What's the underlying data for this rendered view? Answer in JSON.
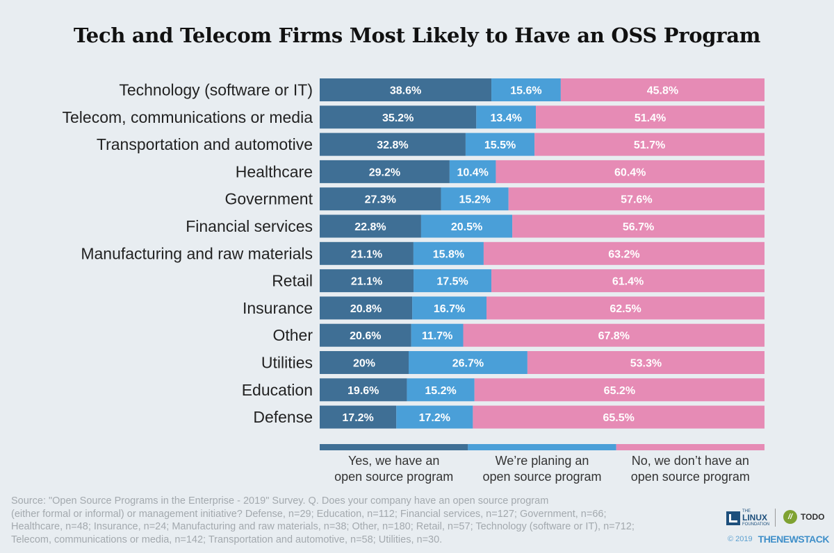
{
  "title": "Tech and Telecom Firms Most Likely to Have an OSS Program",
  "chart_data": {
    "type": "bar",
    "orientation": "horizontal",
    "stacked": "100%",
    "title": "Tech and Telecom Firms Most Likely to Have an OSS Program",
    "categories": [
      "Technology (software or IT)",
      "Telecom, communications or media",
      "Transportation and automotive",
      "Healthcare",
      "Government",
      "Financial services",
      "Manufacturing and raw materials",
      "Retail",
      "Insurance",
      "Other",
      "Utilities",
      "Education",
      "Defense"
    ],
    "series": [
      {
        "name": "Yes, we have an open source program",
        "color": "#3f6f95",
        "values": [
          38.6,
          35.2,
          32.8,
          29.2,
          27.3,
          22.8,
          21.1,
          21.1,
          20.8,
          20.6,
          20,
          19.6,
          17.2
        ],
        "labels": [
          "38.6%",
          "35.2%",
          "32.8%",
          "29.2%",
          "27.3%",
          "22.8%",
          "21.1%",
          "21.1%",
          "20.8%",
          "20.6%",
          "20%",
          "19.6%",
          "17.2%"
        ]
      },
      {
        "name": "We’re planing an open source program",
        "color": "#4a9fd8",
        "values": [
          15.6,
          13.4,
          15.5,
          10.4,
          15.2,
          20.5,
          15.8,
          17.5,
          16.7,
          11.7,
          26.7,
          15.2,
          17.2
        ],
        "labels": [
          "15.6%",
          "13.4%",
          "15.5%",
          "10.4%",
          "15.2%",
          "20.5%",
          "15.8%",
          "17.5%",
          "16.7%",
          "11.7%",
          "26.7%",
          "15.2%",
          "17.2%"
        ]
      },
      {
        "name": "No, we don’t have an open source program",
        "color": "#e68bb5",
        "values": [
          45.8,
          51.4,
          51.7,
          60.4,
          57.6,
          56.7,
          63.2,
          61.4,
          62.5,
          67.8,
          53.3,
          65.2,
          65.5
        ],
        "labels": [
          "45.8%",
          "51.4%",
          "51.7%",
          "60.4%",
          "57.6%",
          "56.7%",
          "63.2%",
          "61.4%",
          "62.5%",
          "67.8%",
          "53.3%",
          "65.2%",
          "65.5%"
        ]
      }
    ],
    "legend": {
      "placement": "bottom",
      "entries": [
        [
          "Yes, we have an",
          "open source program"
        ],
        [
          "We’re planing an",
          "open source program"
        ],
        [
          "No, we don’t have an",
          "open source program"
        ]
      ]
    },
    "grid": false
  },
  "footer": {
    "source_lines": [
      "Source: \"Open Source Programs in the Enterprise - 2019\" Survey. Q. Does your company have an open source program",
      "(either formal or informal) or management initiative? Defense, n=29; Education, n=112; Financial services, n=127; Government, n=66;",
      "Healthcare, n=48;  Insurance, n=24; Manufacturing and raw materials, n=38; Other, n=180; Retail, n=57; Technology (software or IT), n=712;",
      "Telecom, communications or media, n=142; Transportation and automotive, n=58; Utilities, n=30."
    ],
    "copyright": "© 2019",
    "logo_linux_small": "THE",
    "logo_linux_big": "LINUX",
    "logo_linux_foundation": "FOUNDATION",
    "logo_todo": "TODO",
    "logo_todo_mark": "//",
    "logo_newstack": "THENEWSTACK"
  }
}
